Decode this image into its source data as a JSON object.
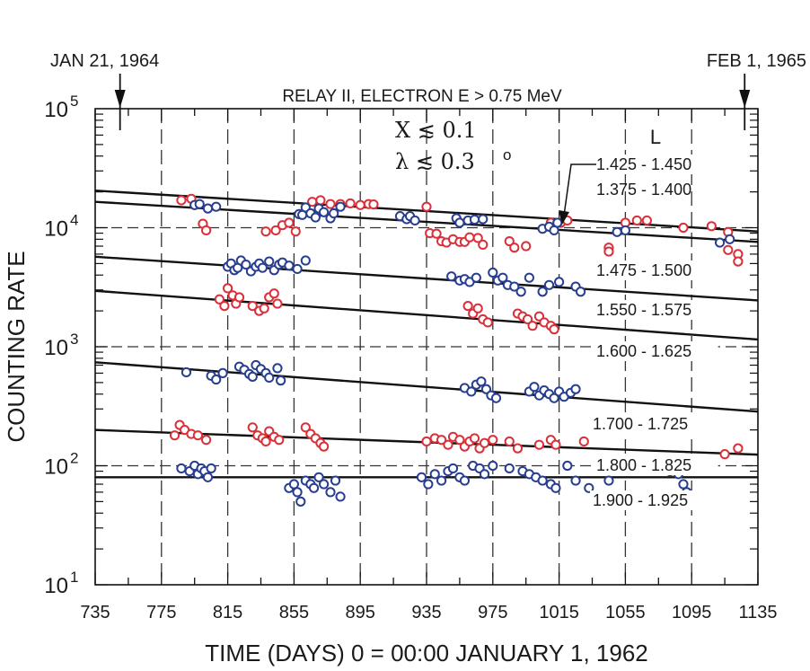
{
  "chart_data": {
    "type": "scatter",
    "title": "RELAY II, ELECTRON E > 0.75 MeV",
    "xlabel": "TIME (DAYS)  0 = 00:00 JANUARY 1, 1962",
    "ylabel": "COUNTING RATE",
    "xlim": [
      735,
      1135
    ],
    "ylim": [
      10,
      100000
    ],
    "yscale": "log",
    "grid": true,
    "x_ticks": [
      "735",
      "775",
      "815",
      "855",
      "895",
      "935",
      "975",
      "1015",
      "1055",
      "1095",
      "1135"
    ],
    "y_ticks": [
      {
        "base": "10",
        "exp": "1"
      },
      {
        "base": "10",
        "exp": "2"
      },
      {
        "base": "10",
        "exp": "3"
      },
      {
        "base": "10",
        "exp": "4"
      },
      {
        "base": "10",
        "exp": "5"
      }
    ],
    "markers": [
      {
        "text": "JAN 21, 1964",
        "x": 750
      },
      {
        "text": "FEB 1, 1965",
        "x": 1127
      }
    ],
    "conditions": [
      {
        "symbol": "X",
        "op": "≲",
        "value": "0.1"
      },
      {
        "symbol": "λ",
        "op": "≲",
        "value": "0.3",
        "sup": "o"
      }
    ],
    "legend_title": "L",
    "colors": {
      "red": "#d9303a",
      "blue": "#283e8f",
      "line": "#111111",
      "grid": "#333333"
    },
    "series": [
      {
        "label": "1.375 - 1.400",
        "color": "red",
        "fit": [
          [
            735,
            16500
          ],
          [
            1135,
            7600
          ]
        ],
        "points": [
          [
            787,
            17000
          ],
          [
            793,
            17500
          ],
          [
            800,
            10800
          ],
          [
            802,
            9500
          ],
          [
            838,
            9300
          ],
          [
            844,
            9500
          ],
          [
            848,
            10500
          ],
          [
            852,
            11000
          ],
          [
            856,
            9300
          ],
          [
            862,
            13500
          ],
          [
            866,
            16500
          ],
          [
            871,
            17000
          ],
          [
            877,
            15800
          ],
          [
            883,
            15800
          ],
          [
            889,
            16000
          ],
          [
            895,
            15500
          ],
          [
            900,
            15800
          ],
          [
            903,
            15700
          ],
          [
            935,
            15000
          ],
          [
            937,
            9000
          ],
          [
            941,
            8900
          ],
          [
            944,
            7700
          ],
          [
            947,
            7500
          ],
          [
            951,
            8000
          ],
          [
            955,
            7600
          ],
          [
            958,
            7600
          ],
          [
            961,
            8300
          ],
          [
            966,
            8200
          ],
          [
            969,
            7200
          ],
          [
            985,
            7700
          ],
          [
            988,
            6800
          ],
          [
            995,
            7000
          ],
          [
            1010,
            11000
          ],
          [
            1016,
            11000
          ],
          [
            1020,
            11500
          ],
          [
            1045,
            6800
          ],
          [
            1045,
            6300
          ],
          [
            1055,
            11000
          ],
          [
            1062,
            11500
          ],
          [
            1068,
            11500
          ],
          [
            1090,
            10000
          ],
          [
            1107,
            10300
          ],
          [
            1117,
            9200
          ],
          [
            1117,
            6500
          ],
          [
            1123,
            6000
          ],
          [
            1123,
            5200
          ]
        ]
      },
      {
        "label": "1.425 - 1.450",
        "color": "blue",
        "fit": [
          [
            735,
            20500
          ],
          [
            1135,
            9300
          ]
        ],
        "points": [
          [
            795,
            15500
          ],
          [
            798,
            15800
          ],
          [
            803,
            14500
          ],
          [
            808,
            15000
          ],
          [
            858,
            13000
          ],
          [
            860,
            12800
          ],
          [
            862,
            14800
          ],
          [
            865,
            13200
          ],
          [
            868,
            12200
          ],
          [
            870,
            14500
          ],
          [
            873,
            13500
          ],
          [
            877,
            12000
          ],
          [
            879,
            13200
          ],
          [
            883,
            15000
          ],
          [
            919,
            12500
          ],
          [
            923,
            11800
          ],
          [
            925,
            12500
          ],
          [
            928,
            11500
          ],
          [
            953,
            12000
          ],
          [
            955,
            11000
          ],
          [
            960,
            11500
          ],
          [
            964,
            11700
          ],
          [
            969,
            11800
          ],
          [
            1005,
            9800
          ],
          [
            1009,
            10200
          ],
          [
            1012,
            9500
          ],
          [
            1014,
            11000
          ],
          [
            1050,
            9200
          ],
          [
            1055,
            9500
          ],
          [
            1112,
            7500
          ],
          [
            1118,
            8000
          ]
        ]
      },
      {
        "label": "1.475 - 1.500",
        "color": "blue",
        "fit": [
          [
            735,
            5700
          ],
          [
            1135,
            2450
          ]
        ],
        "points": [
          [
            815,
            4700
          ],
          [
            817,
            5000
          ],
          [
            819,
            4400
          ],
          [
            821,
            4600
          ],
          [
            823,
            5300
          ],
          [
            826,
            4900
          ],
          [
            829,
            4300
          ],
          [
            832,
            4700
          ],
          [
            834,
            5000
          ],
          [
            836,
            4600
          ],
          [
            840,
            5200
          ],
          [
            843,
            4400
          ],
          [
            846,
            4900
          ],
          [
            848,
            5100
          ],
          [
            852,
            4800
          ],
          [
            857,
            4500
          ],
          [
            862,
            5300
          ],
          [
            950,
            3900
          ],
          [
            955,
            3600
          ],
          [
            958,
            3700
          ],
          [
            961,
            3500
          ],
          [
            965,
            3800
          ],
          [
            975,
            4200
          ],
          [
            978,
            3600
          ],
          [
            981,
            3800
          ],
          [
            984,
            3300
          ],
          [
            988,
            3200
          ],
          [
            992,
            2900
          ],
          [
            997,
            3800
          ],
          [
            1005,
            2900
          ],
          [
            1009,
            3300
          ],
          [
            1015,
            3500
          ],
          [
            1025,
            3200
          ],
          [
            1028,
            2900
          ]
        ]
      },
      {
        "label": "1.550 - 1.575",
        "color": "red",
        "fit": [
          [
            735,
            2950
          ],
          [
            1135,
            1150
          ]
        ],
        "points": [
          [
            810,
            2500
          ],
          [
            813,
            2200
          ],
          [
            815,
            3100
          ],
          [
            818,
            2700
          ],
          [
            820,
            2300
          ],
          [
            822,
            2600
          ],
          [
            830,
            2200
          ],
          [
            834,
            2000
          ],
          [
            837,
            2100
          ],
          [
            840,
            2600
          ],
          [
            843,
            2800
          ],
          [
            845,
            2300
          ],
          [
            960,
            2200
          ],
          [
            963,
            1900
          ],
          [
            966,
            2100
          ],
          [
            969,
            1700
          ],
          [
            972,
            1600
          ],
          [
            990,
            1900
          ],
          [
            993,
            1800
          ],
          [
            996,
            1700
          ],
          [
            999,
            1500
          ],
          [
            1003,
            1800
          ],
          [
            1006,
            1600
          ],
          [
            1010,
            1500
          ],
          [
            1012,
            1400
          ]
        ]
      },
      {
        "label": "1.600 - 1.625",
        "color": "blue",
        "fit": [
          [
            735,
            740
          ],
          [
            1135,
            285
          ]
        ],
        "points": [
          [
            790,
            610
          ],
          [
            805,
            570
          ],
          [
            808,
            530
          ],
          [
            812,
            600
          ],
          [
            822,
            680
          ],
          [
            825,
            640
          ],
          [
            828,
            590
          ],
          [
            830,
            560
          ],
          [
            832,
            700
          ],
          [
            835,
            650
          ],
          [
            838,
            600
          ],
          [
            840,
            550
          ],
          [
            845,
            660
          ],
          [
            847,
            520
          ],
          [
            958,
            450
          ],
          [
            962,
            420
          ],
          [
            965,
            480
          ],
          [
            968,
            510
          ],
          [
            971,
            440
          ],
          [
            974,
            390
          ],
          [
            977,
            370
          ],
          [
            997,
            420
          ],
          [
            1000,
            460
          ],
          [
            1003,
            390
          ],
          [
            1006,
            430
          ],
          [
            1009,
            400
          ],
          [
            1012,
            370
          ],
          [
            1015,
            420
          ],
          [
            1018,
            380
          ],
          [
            1022,
            410
          ],
          [
            1025,
            440
          ]
        ]
      },
      {
        "label": "1.700 - 1.725",
        "color": "red",
        "fit": [
          [
            735,
            200
          ],
          [
            1135,
            124
          ]
        ],
        "points": [
          [
            783,
            180
          ],
          [
            786,
            220
          ],
          [
            789,
            200
          ],
          [
            793,
            185
          ],
          [
            797,
            180
          ],
          [
            802,
            165
          ],
          [
            830,
            210
          ],
          [
            833,
            180
          ],
          [
            836,
            170
          ],
          [
            838,
            160
          ],
          [
            840,
            195
          ],
          [
            843,
            175
          ],
          [
            846,
            165
          ],
          [
            862,
            210
          ],
          [
            865,
            185
          ],
          [
            868,
            170
          ],
          [
            871,
            155
          ],
          [
            873,
            145
          ],
          [
            935,
            160
          ],
          [
            940,
            170
          ],
          [
            944,
            165
          ],
          [
            948,
            150
          ],
          [
            951,
            175
          ],
          [
            955,
            165
          ],
          [
            958,
            145
          ],
          [
            961,
            160
          ],
          [
            964,
            170
          ],
          [
            967,
            140
          ],
          [
            970,
            155
          ],
          [
            975,
            165
          ],
          [
            985,
            160
          ],
          [
            990,
            140
          ],
          [
            1003,
            150
          ],
          [
            1010,
            165
          ],
          [
            1013,
            150
          ],
          [
            1030,
            160
          ],
          [
            1115,
            125
          ],
          [
            1123,
            140
          ]
        ]
      },
      {
        "label": "1.800 - 1.825",
        "color": "blue",
        "fit": [
          [
            735,
            80
          ],
          [
            1135,
            80
          ]
        ],
        "points": [
          [
            787,
            95
          ],
          [
            792,
            90
          ],
          [
            795,
            100
          ],
          [
            797,
            85
          ],
          [
            799,
            95
          ],
          [
            801,
            90
          ],
          [
            803,
            80
          ],
          [
            805,
            95
          ],
          [
            852,
            65
          ],
          [
            855,
            70
          ],
          [
            857,
            60
          ],
          [
            859,
            50
          ],
          [
            862,
            75
          ],
          [
            865,
            70
          ],
          [
            867,
            65
          ],
          [
            870,
            80
          ],
          [
            873,
            70
          ],
          [
            877,
            60
          ],
          [
            880,
            75
          ],
          [
            883,
            55
          ],
          [
            932,
            80
          ],
          [
            936,
            70
          ],
          [
            940,
            85
          ],
          [
            944,
            75
          ],
          [
            948,
            90
          ],
          [
            951,
            95
          ],
          [
            955,
            80
          ],
          [
            958,
            75
          ],
          [
            963,
            100
          ],
          [
            967,
            95
          ],
          [
            970,
            85
          ],
          [
            975,
            100
          ],
          [
            985,
            95
          ],
          [
            993,
            90
          ],
          [
            997,
            85
          ],
          [
            1001,
            80
          ],
          [
            1005,
            75
          ],
          [
            1010,
            70
          ],
          [
            1013,
            65
          ],
          [
            1020,
            100
          ],
          [
            1025,
            75
          ],
          [
            1033,
            65
          ],
          [
            1045,
            75
          ],
          [
            1082,
            90
          ],
          [
            1087,
            85
          ],
          [
            1090,
            70
          ],
          [
            1092,
            60
          ]
        ]
      },
      {
        "label": "1.900 - 1.925",
        "color": "none",
        "fit": [],
        "points": []
      }
    ]
  }
}
